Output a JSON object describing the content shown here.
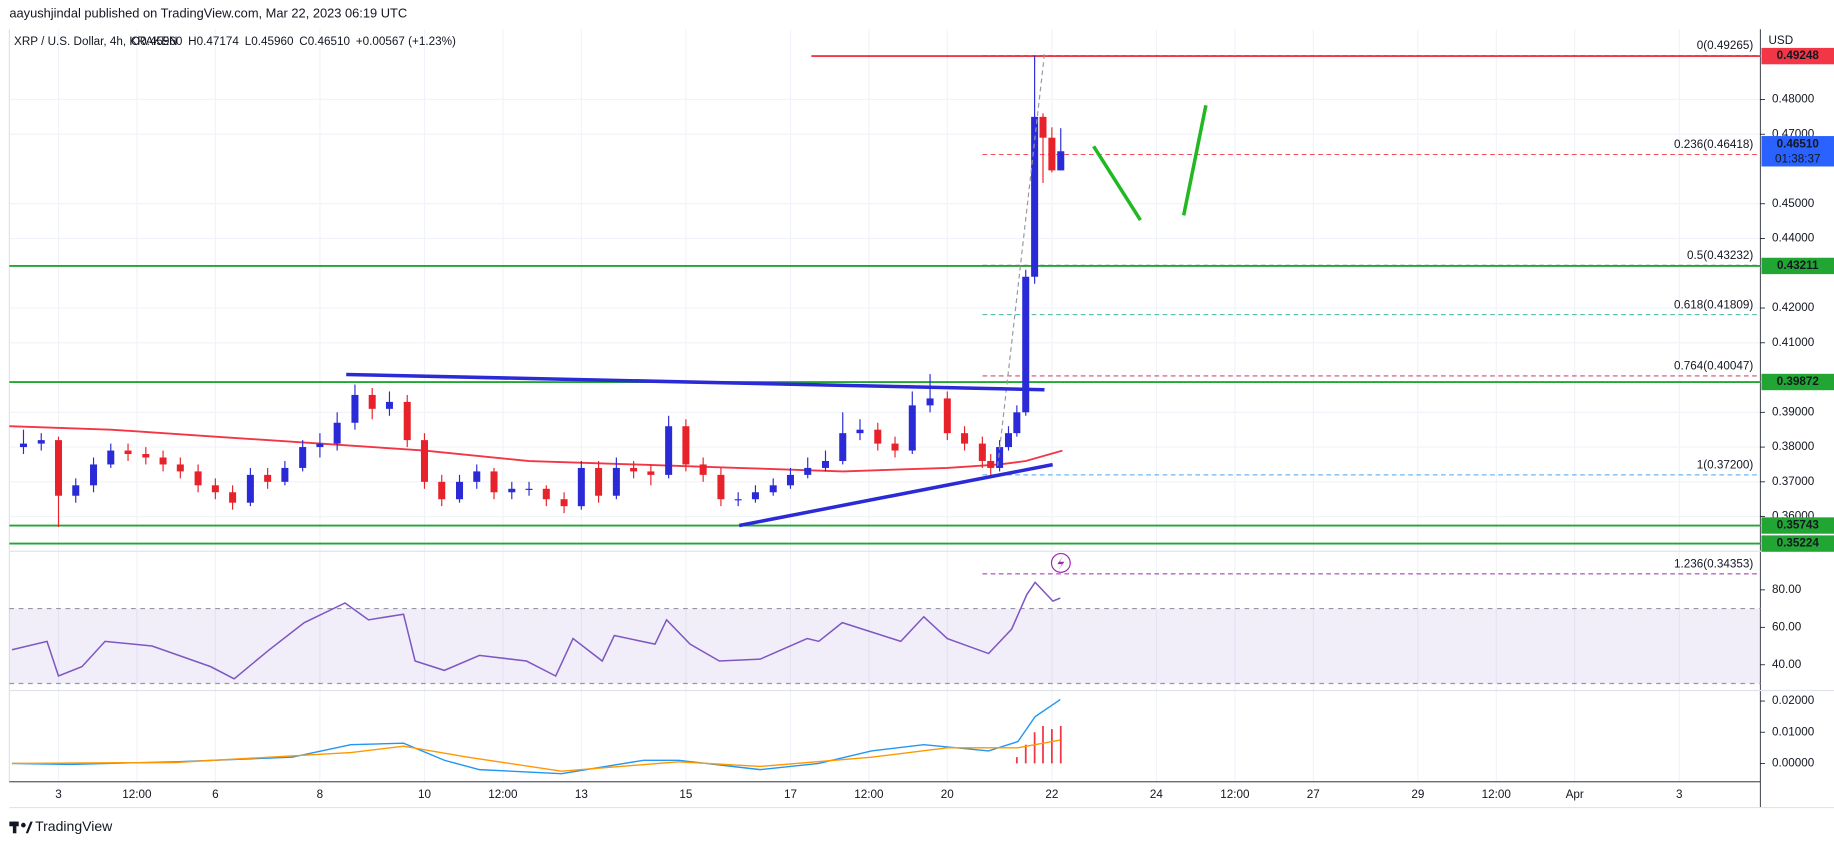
{
  "header": {
    "published": "aayushjindal published on TradingView.com, Mar 22, 2023 06:19 UTC",
    "brand": "TradingView"
  },
  "chart_data": {
    "type": "candlestick",
    "symbol": "XRP / U.S. Dollar, 4h, KRAKEN",
    "ohlc_legend": [
      "O0.45960",
      "H0.47174",
      "L0.45960",
      "C0.46510",
      "+0.00567 (+1.23%)"
    ],
    "currency": "USD",
    "up_color": "#2a2ad6",
    "down_color": "#e8222a",
    "candles": [
      [
        2.33,
        0.38,
        0.385,
        0.378,
        0.381
      ],
      [
        2.67,
        0.381,
        0.384,
        0.379,
        0.382
      ],
      [
        3,
        0.382,
        0.383,
        0.357,
        0.366
      ],
      [
        3.33,
        0.366,
        0.371,
        0.364,
        0.369
      ],
      [
        3.67,
        0.369,
        0.377,
        0.367,
        0.375
      ],
      [
        4,
        0.375,
        0.381,
        0.374,
        0.379
      ],
      [
        4.33,
        0.379,
        0.381,
        0.376,
        0.378
      ],
      [
        4.67,
        0.378,
        0.38,
        0.375,
        0.377
      ],
      [
        5,
        0.377,
        0.379,
        0.373,
        0.375
      ],
      [
        5.33,
        0.375,
        0.377,
        0.371,
        0.373
      ],
      [
        5.67,
        0.373,
        0.375,
        0.367,
        0.369
      ],
      [
        6,
        0.369,
        0.371,
        0.365,
        0.367
      ],
      [
        6.33,
        0.367,
        0.369,
        0.362,
        0.364
      ],
      [
        6.67,
        0.364,
        0.374,
        0.363,
        0.372
      ],
      [
        7,
        0.372,
        0.374,
        0.368,
        0.37
      ],
      [
        7.33,
        0.37,
        0.376,
        0.369,
        0.374
      ],
      [
        7.67,
        0.374,
        0.382,
        0.373,
        0.38
      ],
      [
        8,
        0.38,
        0.384,
        0.377,
        0.381
      ],
      [
        8.33,
        0.381,
        0.39,
        0.379,
        0.387
      ],
      [
        8.67,
        0.387,
        0.398,
        0.385,
        0.395
      ],
      [
        9,
        0.395,
        0.397,
        0.388,
        0.391
      ],
      [
        9.33,
        0.391,
        0.396,
        0.389,
        0.393
      ],
      [
        9.67,
        0.393,
        0.395,
        0.38,
        0.382
      ],
      [
        10,
        0.382,
        0.384,
        0.368,
        0.37
      ],
      [
        10.33,
        0.37,
        0.372,
        0.363,
        0.365
      ],
      [
        10.67,
        0.365,
        0.372,
        0.364,
        0.37
      ],
      [
        11,
        0.37,
        0.375,
        0.368,
        0.373
      ],
      [
        11.33,
        0.373,
        0.374,
        0.365,
        0.367
      ],
      [
        11.67,
        0.367,
        0.37,
        0.365,
        0.368
      ],
      [
        12,
        0.368,
        0.37,
        0.366,
        0.368
      ],
      [
        12.33,
        0.368,
        0.369,
        0.363,
        0.365
      ],
      [
        12.67,
        0.365,
        0.367,
        0.361,
        0.363
      ],
      [
        13,
        0.363,
        0.376,
        0.362,
        0.374
      ],
      [
        13.33,
        0.374,
        0.376,
        0.364,
        0.366
      ],
      [
        13.67,
        0.366,
        0.377,
        0.365,
        0.374
      ],
      [
        14,
        0.374,
        0.376,
        0.371,
        0.373
      ],
      [
        14.33,
        0.373,
        0.375,
        0.369,
        0.372
      ],
      [
        14.67,
        0.372,
        0.389,
        0.371,
        0.386
      ],
      [
        15,
        0.386,
        0.388,
        0.373,
        0.375
      ],
      [
        15.33,
        0.375,
        0.377,
        0.37,
        0.372
      ],
      [
        15.67,
        0.372,
        0.374,
        0.363,
        0.365
      ],
      [
        16,
        0.365,
        0.367,
        0.363,
        0.365
      ],
      [
        16.33,
        0.365,
        0.369,
        0.364,
        0.367
      ],
      [
        16.67,
        0.367,
        0.371,
        0.366,
        0.369
      ],
      [
        17,
        0.369,
        0.374,
        0.368,
        0.372
      ],
      [
        17.33,
        0.372,
        0.377,
        0.371,
        0.374
      ],
      [
        17.67,
        0.374,
        0.379,
        0.373,
        0.376
      ],
      [
        18,
        0.376,
        0.39,
        0.375,
        0.384
      ],
      [
        18.33,
        0.384,
        0.388,
        0.382,
        0.385
      ],
      [
        18.67,
        0.385,
        0.387,
        0.379,
        0.381
      ],
      [
        19,
        0.381,
        0.383,
        0.377,
        0.379
      ],
      [
        19.33,
        0.379,
        0.396,
        0.378,
        0.392
      ],
      [
        19.67,
        0.392,
        0.401,
        0.39,
        0.394
      ],
      [
        20,
        0.394,
        0.396,
        0.382,
        0.384
      ],
      [
        20.33,
        0.384,
        0.386,
        0.379,
        0.381
      ],
      [
        20.67,
        0.381,
        0.383,
        0.374,
        0.376
      ],
      [
        20.83,
        0.376,
        0.378,
        0.372,
        0.374
      ],
      [
        21,
        0.374,
        0.382,
        0.373,
        0.38
      ],
      [
        21.17,
        0.38,
        0.386,
        0.379,
        0.384
      ],
      [
        21.33,
        0.384,
        0.392,
        0.383,
        0.39
      ],
      [
        21.5,
        0.39,
        0.431,
        0.389,
        0.429
      ],
      [
        21.67,
        0.429,
        0.4926,
        0.427,
        0.475
      ],
      [
        21.83,
        0.475,
        0.476,
        0.456,
        0.469
      ],
      [
        22,
        0.469,
        0.472,
        0.459,
        0.4596
      ],
      [
        22.17,
        0.4596,
        0.47174,
        0.4596,
        0.4651
      ]
    ],
    "xlim": [
      2.06,
      35.55
    ],
    "xticks": [
      3,
      {
        "value": 4.5,
        "label": "12:00"
      },
      6,
      8,
      10,
      {
        "value": 11.5,
        "label": "12:00"
      },
      13,
      15,
      17,
      {
        "value": 18.5,
        "label": "12:00"
      },
      20,
      22,
      24,
      {
        "value": 25.5,
        "label": "12:00"
      },
      27,
      29,
      {
        "value": 30.5,
        "label": "12:00"
      },
      {
        "value": 32,
        "label": "Apr"
      },
      {
        "value": 34,
        "label": "3"
      }
    ],
    "ylim": [
      0.35037,
      0.5002
    ],
    "yticks": [
      {
        "value": 0.48,
        "label": "0.48000"
      },
      {
        "value": 0.47,
        "label": "0.47000"
      },
      {
        "value": 0.45,
        "label": "0.45000"
      },
      {
        "value": 0.44,
        "label": "0.44000"
      },
      {
        "value": 0.42,
        "label": "0.42000"
      },
      {
        "value": 0.41,
        "label": "0.41000"
      },
      {
        "value": 0.39,
        "label": "0.39000"
      },
      {
        "value": 0.38,
        "label": "0.38000"
      },
      {
        "value": 0.37,
        "label": "0.37000"
      },
      {
        "value": 0.36,
        "label": "0.36000"
      }
    ],
    "grid": true,
    "levels": [
      {
        "price": 0.49248,
        "label": "0.49248",
        "color": "#f23645",
        "from": 17.4
      },
      {
        "price": 0.43211,
        "label": "0.43211",
        "color": "#22a633",
        "from": 2.06
      },
      {
        "price": 0.39872,
        "label": "0.39872",
        "color": "#22a633",
        "from": 2.06
      },
      {
        "price": 0.35743,
        "label": "0.35743",
        "color": "#22a633",
        "from": 2.06
      },
      {
        "price": 0.35224,
        "label": "0.35224",
        "color": "#22a633",
        "from": 2.06
      }
    ],
    "current": {
      "price": 0.4651,
      "label": "0.46510",
      "countdown": "01:38:37",
      "color": "#2962ff"
    },
    "fib": [
      {
        "ratio": 0,
        "price": 0.49265,
        "label": "0(0.49265)",
        "color": "#787b86"
      },
      {
        "ratio": 0.236,
        "price": 0.46418,
        "label": "0.236(0.46418)",
        "color": "#f23645"
      },
      {
        "ratio": 0.5,
        "price": 0.43232,
        "label": "0.5(0.43232)",
        "color": "#787b86"
      },
      {
        "ratio": 0.618,
        "price": 0.41809,
        "label": "0.618(0.41809)",
        "color": "#22ab94"
      },
      {
        "ratio": 0.764,
        "price": 0.40047,
        "label": "0.764(0.40047)",
        "color": "#c2185b"
      },
      {
        "ratio": 1,
        "price": 0.372,
        "label": "1(0.37200)",
        "color": "#4aa3f0"
      },
      {
        "ratio": 1.236,
        "price": 0.34353,
        "label": "1.236(0.34353)",
        "color": "#9c27b0"
      }
    ],
    "ma": {
      "color": "#f23645",
      "x": [
        2.06,
        4,
        6,
        8,
        10,
        12,
        14,
        16,
        18,
        20,
        21,
        21.5,
        22.2
      ],
      "values": [
        0.386,
        0.385,
        0.383,
        0.381,
        0.379,
        0.376,
        0.375,
        0.374,
        0.373,
        0.374,
        0.375,
        0.376,
        0.379
      ]
    },
    "rsi": {
      "color": "#7e57c2",
      "ylim": [
        27.5,
        100
      ],
      "band": [
        30,
        70
      ],
      "yticks": [
        {
          "value": 80,
          "label": "80.00"
        },
        {
          "value": 60,
          "label": "60.00"
        },
        {
          "value": 40,
          "label": "40.00"
        }
      ],
      "x": [
        2.11,
        2.78,
        3,
        3.45,
        3.89,
        4.79,
        5.91,
        6.36,
        7.03,
        7.7,
        8.48,
        8.93,
        9.6,
        9.82,
        10.38,
        11.05,
        11.95,
        12.51,
        12.84,
        13.4,
        13.63,
        14.41,
        14.63,
        15.08,
        15.64,
        16.42,
        17.32,
        17.54,
        17.99,
        18.55,
        19.11,
        19.55,
        20,
        20.79,
        21.23,
        21.52,
        21.68,
        22.02,
        22.16
      ],
      "values": [
        48,
        52.5,
        34,
        39,
        52.5,
        50,
        39,
        32.5,
        48,
        62.5,
        73,
        64,
        67,
        42,
        37,
        45,
        42,
        34,
        54,
        42,
        55.6,
        51,
        64,
        51,
        42,
        43,
        54,
        52.5,
        62.5,
        57.5,
        52.5,
        65.6,
        54,
        46,
        59,
        77.5,
        84,
        74,
        75.6
      ]
    },
    "macd": {
      "ylim": [
        -0.0059,
        0.023
      ],
      "yticks": [
        {
          "value": 0.02,
          "label": "0.02000"
        },
        {
          "value": 0.01,
          "label": "0.01000"
        },
        {
          "value": 0,
          "label": "0.00000"
        }
      ],
      "series": [
        {
          "color": "#2196f3",
          "x": [
            2.11,
            3.22,
            5.23,
            7.47,
            8.59,
            9.6,
            10.38,
            11.05,
            12.62,
            14.19,
            14.86,
            16.42,
            17.54,
            18.55,
            19.55,
            20.79,
            21.35,
            21.68,
            22.16
          ],
          "values": [
            0,
            -0.0003,
            0.0005,
            0.002,
            0.006,
            0.0065,
            0.001,
            -0.002,
            -0.0033,
            0.001,
            0.001,
            -0.002,
            0,
            0.004,
            0.006,
            0.004,
            0.007,
            0.015,
            0.0205
          ]
        },
        {
          "color": "#ff9800",
          "x": [
            2.11,
            5.23,
            8.59,
            9.6,
            10.83,
            12.62,
            14.86,
            16.42,
            18.55,
            20,
            21.35,
            22.16
          ],
          "values": [
            0,
            0.0003,
            0.0035,
            0.0055,
            0.002,
            -0.0025,
            0.0005,
            -0.001,
            0.002,
            0.005,
            0.005,
            0.0075
          ]
        }
      ],
      "histogram": {
        "color": "#f23645",
        "x": [
          21.33,
          21.5,
          21.67,
          21.83,
          22,
          22.17
        ],
        "values": [
          0.002,
          0.006,
          0.01,
          0.012,
          0.011,
          0.012
        ]
      }
    }
  }
}
